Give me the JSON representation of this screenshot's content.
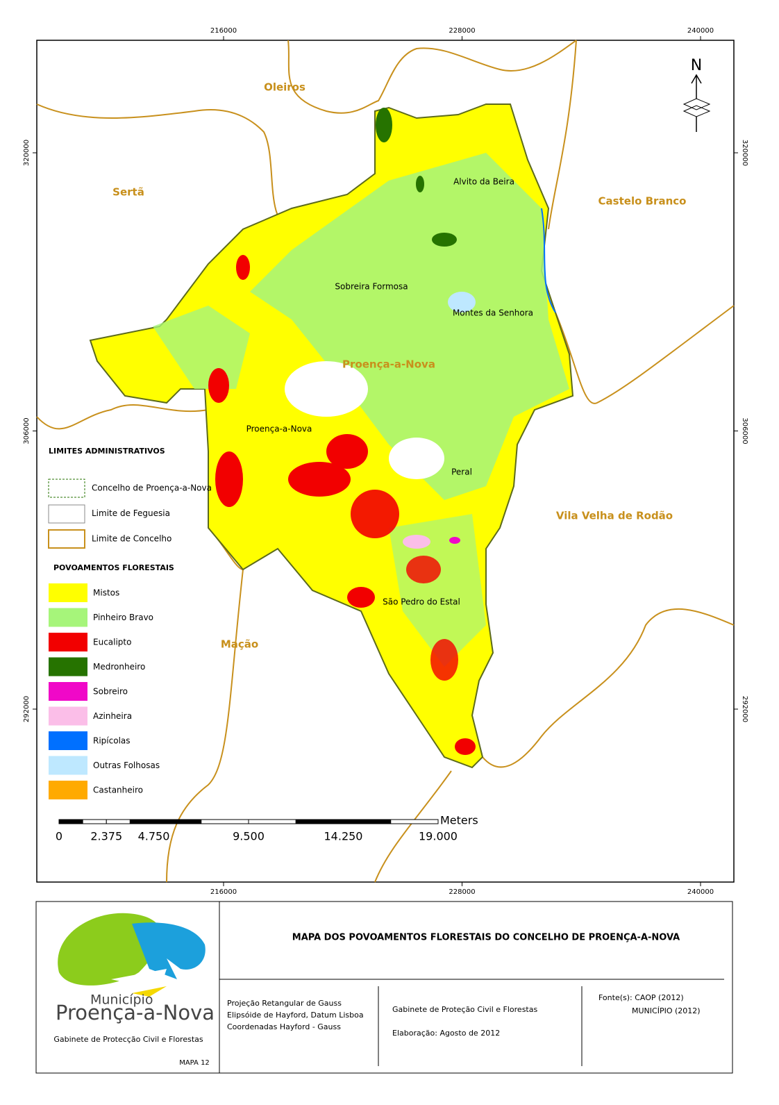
{
  "frame": {
    "x_coords": [
      216000,
      228000,
      240000
    ],
    "y_coords": [
      320000,
      306000,
      292000
    ]
  },
  "places": {
    "neighbours": [
      "Oleiros",
      "Sertã",
      "Castelo Branco",
      "Vila Velha de Rodão",
      "Mação"
    ],
    "municipality": "Proença-a-Nova",
    "parishes": [
      "Alvito da Beira",
      "Sobreira Formosa",
      "Montes da Senhora",
      "Proença-a-Nova",
      "Peral",
      "São Pedro do Estal"
    ]
  },
  "north_arrow": "N",
  "legend": {
    "admin_title": "LIMITES ADMINISTRATIVOS",
    "admin_items": [
      "Concelho de Proença-a-Nova",
      "Limite de Feguesia",
      "Limite de Concelho"
    ],
    "forest_title": "POVOAMENTOS FLORESTAIS",
    "forest_items": [
      {
        "name": "Mistos",
        "color": "#ffff00"
      },
      {
        "name": "Pinheiro Bravo",
        "color": "#a6f57a"
      },
      {
        "name": "Eucalipto",
        "color": "#f20000"
      },
      {
        "name": "Medronheiro",
        "color": "#267300"
      },
      {
        "name": "Sobreiro",
        "color": "#f008c8"
      },
      {
        "name": "Azinheira",
        "color": "#fbbee8"
      },
      {
        "name": "Ripícolas",
        "color": "#0070ff"
      },
      {
        "name": "Outras Folhosas",
        "color": "#bee8ff"
      },
      {
        "name": "Castanheiro",
        "color": "#ffaa00"
      }
    ]
  },
  "scale_bar": {
    "unit": "Meters",
    "ticks": [
      0,
      {
        "value": 2.375,
        "label": "2.375"
      },
      {
        "value": 4.75,
        "label": "4.750"
      },
      {
        "value": 9.5,
        "label": "9.500"
      },
      {
        "value": 14.25,
        "label": "14.250"
      },
      {
        "value": 19,
        "label": "19.000"
      }
    ]
  },
  "footer": {
    "title": "MAPA DOS POVOAMENTOS FLORESTAIS DO CONCELHO DE PROENÇA-A-NOVA",
    "logo_top": "Município",
    "logo_name": "Proença-a-Nova",
    "office": "Gabinete de Protecção Civil e Florestas",
    "map_no": "MAPA 12",
    "projection": [
      "Projeção Retangular de Gauss",
      "Elipsóide de Hayford, Datum Lisboa",
      "Coordenadas Hayford - Gauss"
    ],
    "author": "Gabinete de Proteção Civil e Florestas",
    "date": "Elaboração: Agosto de 2012",
    "sources": [
      "Fonte(s): CAOP (2012)",
      "MUNICÍPIO (2012)"
    ]
  }
}
